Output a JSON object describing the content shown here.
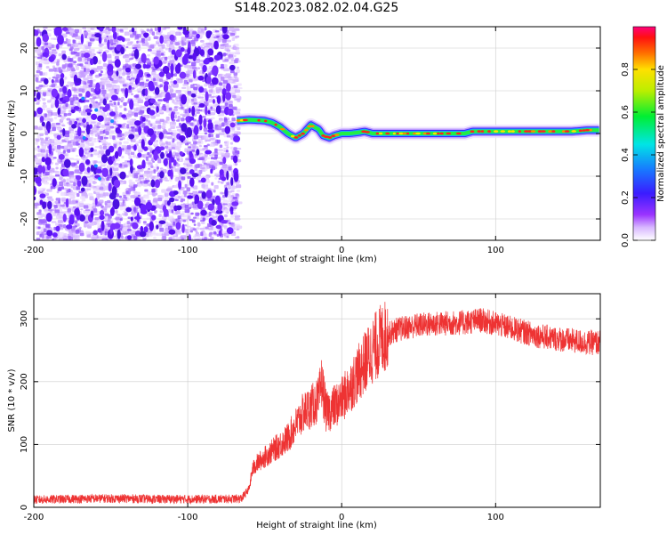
{
  "figure": {
    "title": "S148.2023.082.02.04.G25"
  },
  "chart_data": [
    {
      "type": "heatmap",
      "name": "spectrogram",
      "xlabel": "Height of straight line (km)",
      "ylabel": "Frequency (Hz)",
      "xlim": [
        -200,
        168
      ],
      "ylim": [
        -25,
        25
      ],
      "xticks": [
        -200,
        -100,
        0,
        100
      ],
      "xtick_labels": [
        "-200",
        "-100",
        "0",
        "100"
      ],
      "yticks": [
        -20,
        -10,
        0,
        10,
        20
      ],
      "ytick_labels": [
        "-20",
        "-10",
        "0",
        "10",
        "20"
      ],
      "noise_region_x": [
        -200,
        -68
      ],
      "signal_region_x": [
        -68,
        168
      ],
      "signal_trace": {
        "x": [
          -68,
          -60,
          -50,
          -45,
          -40,
          -35,
          -30,
          -25,
          -20,
          -15,
          -12,
          -8,
          -5,
          0,
          5,
          10,
          15,
          20,
          25,
          30,
          40,
          50,
          60,
          70,
          80,
          85,
          90,
          100,
          110,
          120,
          130,
          140,
          150,
          160,
          168
        ],
        "y": [
          3.0,
          3.2,
          3.0,
          2.5,
          1.5,
          0.0,
          -1.0,
          0.0,
          2.0,
          1.0,
          -0.5,
          -1.0,
          -0.5,
          0.0,
          0.0,
          0.2,
          0.5,
          0.0,
          0.0,
          0.0,
          0.0,
          0.0,
          0.0,
          0.0,
          0.0,
          0.5,
          0.5,
          0.5,
          0.5,
          0.5,
          0.5,
          0.5,
          0.5,
          0.8,
          0.8
        ]
      },
      "colorbar": {
        "label": "Normalized spectral amplitude",
        "range": [
          0,
          1
        ],
        "ticks": [
          0,
          0.2,
          0.4,
          0.6,
          0.8
        ],
        "tick_labels": [
          "0.0",
          "0.2",
          "0.4",
          "0.6",
          "0.8"
        ]
      },
      "grid": true
    },
    {
      "type": "line",
      "name": "snr",
      "xlabel": "Height of straight line (km)",
      "ylabel": "SNR (10 * v/v)",
      "xlim": [
        -200,
        168
      ],
      "ylim": [
        0,
        340
      ],
      "xticks": [
        -200,
        -100,
        0,
        100
      ],
      "xtick_labels": [
        "-200",
        "-100",
        "0",
        "100"
      ],
      "yticks": [
        0,
        100,
        200,
        300
      ],
      "ytick_labels": [
        "0",
        "100",
        "200",
        "300"
      ],
      "color": "#ee3333",
      "grid": true,
      "series": [
        {
          "x": [
            -200,
            -180,
            -160,
            -140,
            -120,
            -100,
            -80,
            -65,
            -60,
            -58,
            -55,
            -50,
            -45,
            -40,
            -35,
            -30,
            -25,
            -20,
            -15,
            -13,
            -10,
            -5,
            0,
            5,
            10,
            15,
            20,
            25,
            30,
            35,
            40,
            50,
            60,
            70,
            80,
            90,
            95,
            100,
            110,
            120,
            130,
            140,
            150,
            160,
            168
          ],
          "y": [
            12,
            13,
            14,
            14,
            13,
            13,
            13,
            14,
            30,
            60,
            70,
            80,
            90,
            100,
            110,
            130,
            150,
            160,
            170,
            200,
            150,
            160,
            170,
            190,
            210,
            230,
            250,
            265,
            275,
            282,
            285,
            290,
            292,
            293,
            294,
            298,
            295,
            292,
            285,
            278,
            272,
            268,
            265,
            262,
            262
          ]
        }
      ]
    }
  ]
}
